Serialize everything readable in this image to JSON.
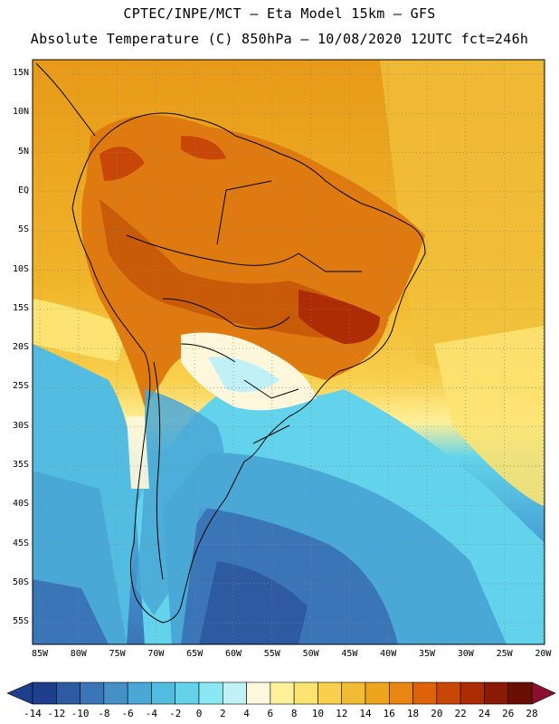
{
  "header": {
    "line1": "CPTEC/INPE/MCT –  Eta Model 15km – GFS",
    "line2": "Absolute Temperature (C) 850hPa – 10/08/2020 12UTC fct=246h"
  },
  "map": {
    "lat_labels": [
      "15N",
      "10N",
      "5N",
      "EQ",
      "5S",
      "10S",
      "15S",
      "20S",
      "25S",
      "30S",
      "35S",
      "40S",
      "45S",
      "50S",
      "55S"
    ],
    "lon_labels": [
      "85W",
      "80W",
      "75W",
      "70W",
      "65W",
      "60W",
      "55W",
      "50W",
      "45W",
      "40W",
      "35W",
      "30W",
      "25W",
      "20W"
    ]
  },
  "colorbar": {
    "labels": [
      "-14",
      "-12",
      "-10",
      "-8",
      "-6",
      "-4",
      "-2",
      "0",
      "2",
      "4",
      "6",
      "8",
      "10",
      "12",
      "14",
      "16",
      "18",
      "20",
      "22",
      "24",
      "26",
      "28"
    ],
    "colors": [
      "#1f3f8c",
      "#2d5aa0",
      "#3a75b8",
      "#4690c8",
      "#4aa8d6",
      "#52bde0",
      "#62d3ea",
      "#8ae8f2",
      "#bff1f7",
      "#fff7dc",
      "#fff09a",
      "#fde372",
      "#f8d04e",
      "#f2bb34",
      "#eea51e",
      "#e98512",
      "#de620a",
      "#c84606",
      "#ad2c04",
      "#8a1a02",
      "#6a1002",
      "#8b0e2e"
    ]
  }
}
